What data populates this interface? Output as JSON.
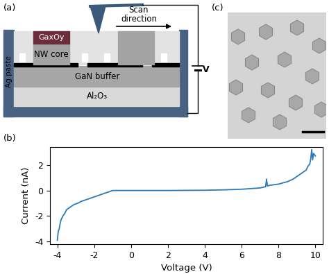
{
  "panel_labels": [
    "(a)",
    "(b)",
    "(c)"
  ],
  "diagram": {
    "cap": "GaxOy",
    "core": "NW core",
    "scan": "Scan\ndirection",
    "voltage": "V",
    "contact": "Ag paste",
    "buffer": "GaN buffer",
    "substrate": "Al₂O₃"
  },
  "chart_data": {
    "type": "line",
    "xlabel": "Voltage (V)",
    "ylabel": "Current (nA)",
    "color": "#2b7bba",
    "x": [
      -4.0,
      -3.98,
      -3.95,
      -3.9,
      -3.85,
      -3.8,
      -3.7,
      -3.6,
      -3.5,
      -3.3,
      -3.1,
      -2.9,
      -2.7,
      -2.5,
      -2.3,
      -2.1,
      -1.9,
      -1.7,
      -1.5,
      -1.3,
      -1.1,
      -1.0,
      0,
      2,
      4,
      5,
      6,
      6.5,
      7,
      7.3,
      7.35,
      7.4,
      7.5,
      8,
      8.5,
      8.8,
      9,
      9.2,
      9.4,
      9.5,
      9.6,
      9.7,
      9.75,
      9.8,
      9.85,
      9.9,
      10.0
    ],
    "values": [
      -3.9,
      -3.6,
      -3.2,
      -3.0,
      -2.6,
      -2.3,
      -2.0,
      -1.8,
      -1.5,
      -1.3,
      -1.1,
      -1.0,
      -0.85,
      -0.75,
      -0.65,
      -0.55,
      -0.45,
      -0.35,
      -0.25,
      -0.15,
      -0.05,
      0.0,
      0.0,
      0.0,
      0.02,
      0.05,
      0.1,
      0.15,
      0.2,
      0.3,
      0.9,
      0.35,
      0.4,
      0.5,
      0.7,
      0.9,
      1.1,
      1.3,
      1.5,
      1.6,
      1.9,
      2.1,
      2.5,
      3.2,
      2.4,
      2.9,
      2.7
    ],
    "xlim": [
      -4.4,
      10.4
    ],
    "xticks": [
      -4,
      -2,
      0,
      2,
      4,
      6,
      8,
      10
    ],
    "ylim": [
      -4.2,
      3.4
    ],
    "yticks": [
      -4,
      -2,
      0,
      2
    ],
    "grid": false
  }
}
